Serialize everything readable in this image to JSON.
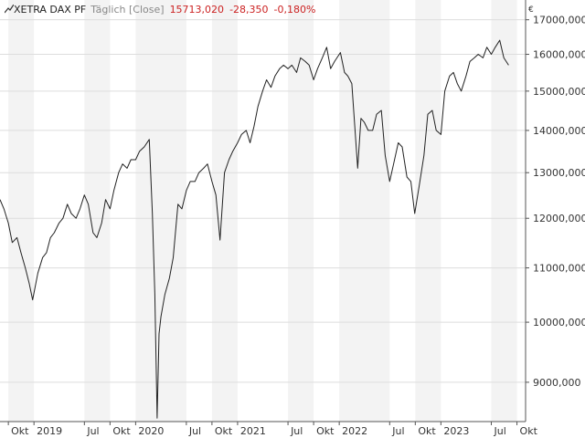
{
  "header": {
    "icon": "line-chart-icon",
    "symbol": "XETRA DAX PF",
    "interval": "Täglich [Close]",
    "last_value": "15713,020",
    "change": "-28,350",
    "change_pct": "-0,180%",
    "currency": "€"
  },
  "colors": {
    "line": "#222222",
    "negative": "#cc2222",
    "band": "#f3f3f3",
    "grid": "#dddddd"
  },
  "chart_data": {
    "type": "line",
    "title": "",
    "xlabel": "",
    "ylabel": "",
    "yscale": "log",
    "xlim": [
      "2018-09-01",
      "2023-11-01"
    ],
    "ylim": [
      8400,
      17600
    ],
    "y_ticks": [
      9000,
      10000,
      11000,
      12000,
      13000,
      14000,
      15000,
      16000,
      17000
    ],
    "y_tick_labels": [
      "9000,000",
      "10000,000",
      "11000,000",
      "12000,000",
      "13000,000",
      "14000,000",
      "15000,000",
      "16000,000",
      "17000,000"
    ],
    "x_ticks": [
      {
        "date": "2018-10-01",
        "label": "Okt"
      },
      {
        "date": "2019-01-01",
        "label": "2019"
      },
      {
        "date": "2019-07-01",
        "label": "Jul"
      },
      {
        "date": "2019-10-01",
        "label": "Okt"
      },
      {
        "date": "2020-01-01",
        "label": "2020"
      },
      {
        "date": "2020-07-01",
        "label": "Jul"
      },
      {
        "date": "2020-10-01",
        "label": "Okt"
      },
      {
        "date": "2021-01-01",
        "label": "2021"
      },
      {
        "date": "2021-07-01",
        "label": "Jul"
      },
      {
        "date": "2021-10-01",
        "label": "Okt"
      },
      {
        "date": "2022-01-01",
        "label": "2022"
      },
      {
        "date": "2022-07-01",
        "label": "Jul"
      },
      {
        "date": "2022-10-01",
        "label": "Okt"
      },
      {
        "date": "2023-01-01",
        "label": "2023"
      },
      {
        "date": "2023-07-01",
        "label": "Jul"
      },
      {
        "date": "2023-10-01",
        "label": "Okt"
      }
    ],
    "grid": true,
    "series": [
      {
        "name": "",
        "x": [
          "2018-09-01",
          "2018-09-15",
          "2018-10-01",
          "2018-10-15",
          "2018-11-01",
          "2018-11-15",
          "2018-12-01",
          "2018-12-15",
          "2018-12-27",
          "2019-01-15",
          "2019-02-01",
          "2019-02-15",
          "2019-03-01",
          "2019-03-15",
          "2019-04-01",
          "2019-04-15",
          "2019-05-01",
          "2019-05-15",
          "2019-06-01",
          "2019-06-15",
          "2019-07-01",
          "2019-07-15",
          "2019-08-01",
          "2019-08-15",
          "2019-09-01",
          "2019-09-15",
          "2019-10-01",
          "2019-10-15",
          "2019-11-01",
          "2019-11-15",
          "2019-12-01",
          "2019-12-15",
          "2020-01-01",
          "2020-01-15",
          "2020-02-01",
          "2020-02-19",
          "2020-03-01",
          "2020-03-10",
          "2020-03-18",
          "2020-03-25",
          "2020-04-01",
          "2020-04-15",
          "2020-05-01",
          "2020-05-15",
          "2020-06-01",
          "2020-06-15",
          "2020-07-01",
          "2020-07-15",
          "2020-08-01",
          "2020-08-15",
          "2020-09-01",
          "2020-09-15",
          "2020-10-01",
          "2020-10-15",
          "2020-10-30",
          "2020-11-15",
          "2020-12-01",
          "2020-12-15",
          "2021-01-01",
          "2021-01-15",
          "2021-02-01",
          "2021-02-15",
          "2021-03-01",
          "2021-03-15",
          "2021-04-01",
          "2021-04-15",
          "2021-05-01",
          "2021-05-15",
          "2021-06-01",
          "2021-06-15",
          "2021-07-01",
          "2021-07-15",
          "2021-08-01",
          "2021-08-15",
          "2021-09-01",
          "2021-09-15",
          "2021-10-01",
          "2021-10-15",
          "2021-11-01",
          "2021-11-17",
          "2021-12-01",
          "2021-12-15",
          "2022-01-05",
          "2022-01-20",
          "2022-02-01",
          "2022-02-15",
          "2022-03-08",
          "2022-03-20",
          "2022-04-01",
          "2022-04-15",
          "2022-05-01",
          "2022-05-15",
          "2022-06-01",
          "2022-06-15",
          "2022-07-01",
          "2022-07-15",
          "2022-08-01",
          "2022-08-15",
          "2022-09-01",
          "2022-09-15",
          "2022-09-29",
          "2022-10-15",
          "2022-11-01",
          "2022-11-15",
          "2022-12-01",
          "2022-12-15",
          "2023-01-01",
          "2023-01-15",
          "2023-02-01",
          "2023-02-15",
          "2023-03-01",
          "2023-03-15",
          "2023-04-01",
          "2023-04-15",
          "2023-05-01",
          "2023-05-15",
          "2023-06-01",
          "2023-06-15",
          "2023-07-01",
          "2023-07-15",
          "2023-07-31",
          "2023-08-15",
          "2023-09-01"
        ],
        "values": [
          12400,
          12200,
          11900,
          11500,
          11600,
          11300,
          11000,
          10700,
          10400,
          10900,
          11200,
          11300,
          11600,
          11700,
          11900,
          12000,
          12300,
          12100,
          12000,
          12200,
          12500,
          12300,
          11700,
          11600,
          11900,
          12400,
          12200,
          12600,
          13000,
          13200,
          13100,
          13300,
          13300,
          13500,
          13600,
          13780,
          12100,
          10500,
          8450,
          9800,
          10100,
          10500,
          10800,
          11200,
          12300,
          12200,
          12600,
          12800,
          12800,
          13000,
          13100,
          13200,
          12800,
          12500,
          11550,
          13000,
          13300,
          13500,
          13700,
          13900,
          14000,
          13700,
          14100,
          14600,
          15000,
          15300,
          15100,
          15400,
          15600,
          15700,
          15600,
          15700,
          15500,
          15900,
          15800,
          15700,
          15300,
          15600,
          15900,
          16200,
          15600,
          15800,
          16050,
          15500,
          15400,
          15200,
          13100,
          14300,
          14200,
          14000,
          14000,
          14400,
          14500,
          13400,
          12800,
          13200,
          13700,
          13600,
          12900,
          12800,
          12100,
          12700,
          13400,
          14400,
          14500,
          14000,
          13900,
          15000,
          15400,
          15500,
          15200,
          15000,
          15400,
          15800,
          15900,
          16000,
          15900,
          16200,
          16000,
          16200,
          16400,
          15900,
          15700
        ]
      }
    ]
  }
}
